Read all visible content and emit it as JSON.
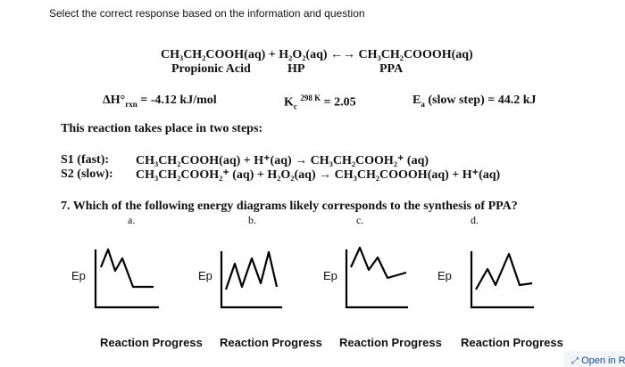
{
  "instruction": "Select the correct response based on the information and question",
  "reaction": {
    "equation": "CH₃CH₂COOH(aq) + H₂O₂(aq) ←→ CH₃CH₂COOOH(aq)",
    "labels": [
      "Propionic Acid",
      "HP",
      "PPA"
    ]
  },
  "constants": {
    "enthalpy": {
      "symbol": "ΔH°",
      "sub": "rxn",
      "rest": "= -4.12 kJ/mol"
    },
    "equilibrium": {
      "symbol": "K",
      "sub": "c",
      "sup": "298 K",
      "rest": "= 2.05"
    },
    "activation": {
      "symbol": "E",
      "sub": "a",
      "rest": "(slow step) = 44.2 kJ"
    }
  },
  "steps_intro": "This reaction takes place in two steps:",
  "steps": [
    {
      "label": "S1 (fast):",
      "equation": "CH₃CH₂COOH(aq) + H⁺(aq) → CH₃CH₂COOH₂⁺ (aq)"
    },
    {
      "label": "S2 (slow):",
      "equation": "CH₃CH₂COOH₂⁺ (aq) + H₂O₂(aq) → CH₃CH₂COOOH(aq) + H⁺(aq)"
    }
  ],
  "question": "7. Which of the following energy diagrams likely corresponds to the synthesis of PPA?",
  "options": [
    {
      "letter": "a.",
      "y_label": "Ep",
      "x_label": "Reaction Progress"
    },
    {
      "letter": "b.",
      "y_label": "Ep",
      "x_label": "Reaction Progress"
    },
    {
      "letter": "c.",
      "y_label": "Ep",
      "x_label": "Reaction Progress"
    },
    {
      "letter": "d.",
      "y_label": "Ep",
      "x_label": "Reaction Progress"
    }
  ],
  "open_button": "Open in R"
}
